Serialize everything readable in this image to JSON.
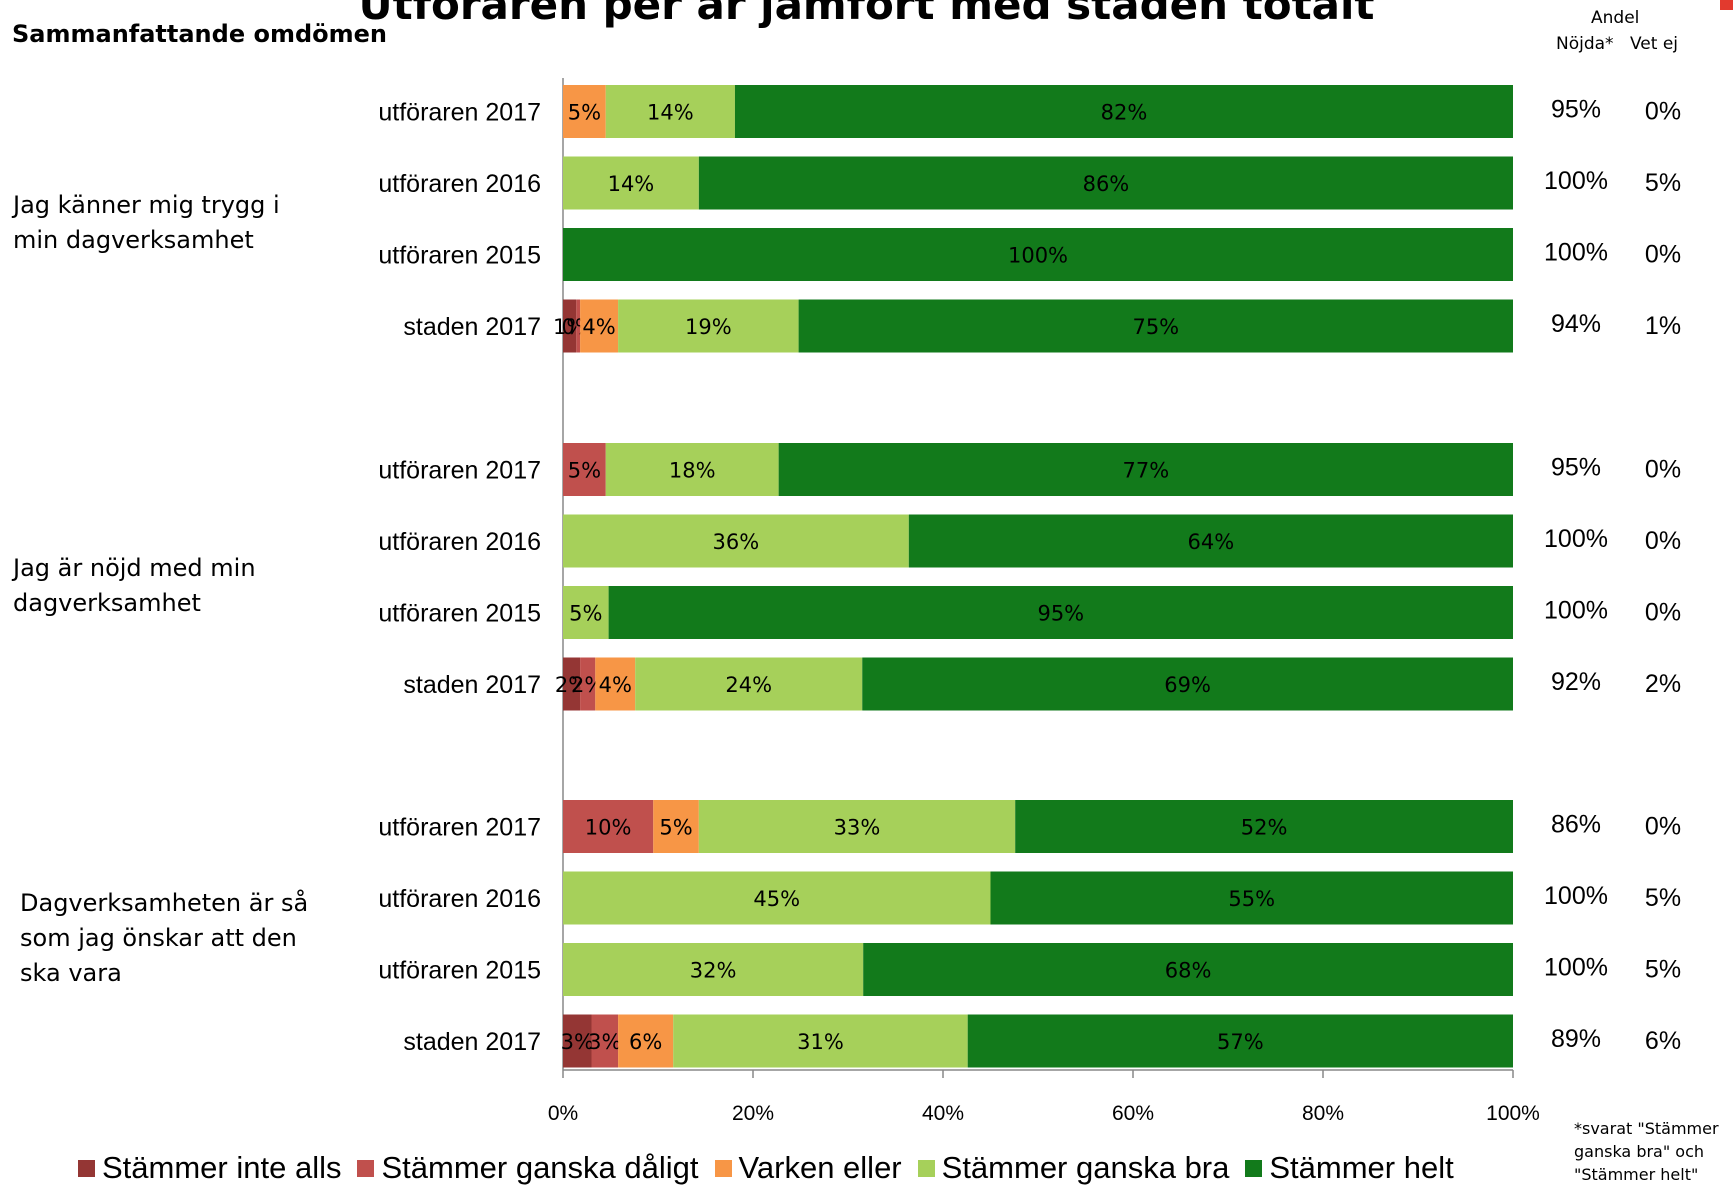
{
  "page": {
    "title": "Utföraren per år jämfört med staden totalt",
    "section_heading": "Sammanfattande omdömen",
    "header_andel": "Andel",
    "header_nojda": "Nöjda*",
    "header_vet_ej": "Vet ej",
    "footnote": "*svarat \"Stämmer ganska bra\" och \"Stämmer helt\""
  },
  "colors": {
    "Stämmer inte alls": "#943634",
    "Stämmer ganska dåligt": "#c0504d",
    "Varken eller": "#f79646",
    "Stämmer ganska bra": "#a6d05a",
    "Stämmer helt": "#127a1b"
  },
  "chart_data": {
    "type": "bar",
    "orientation": "horizontal",
    "stacked": true,
    "percent_stacked": true,
    "xlim": [
      0,
      100
    ],
    "x_ticks": [
      "0%",
      "20%",
      "40%",
      "60%",
      "80%",
      "100%"
    ],
    "legend_position": "bottom",
    "series_names": [
      "Stämmer inte alls",
      "Stämmer ganska dåligt",
      "Varken eller",
      "Stämmer ganska bra",
      "Stämmer helt"
    ],
    "groups": [
      {
        "label": "Jag känner mig trygg i min dagverksamhet",
        "bars": [
          {
            "category": "utföraren 2017",
            "values": [
              0,
              0,
              4.5,
              13.6,
              81.9
            ],
            "labels": [
              "",
              "",
              "5%",
              "14%",
              "82%"
            ],
            "nojda": "95%",
            "vet_ej": "0%"
          },
          {
            "category": "utföraren 2016",
            "values": [
              0,
              0,
              0,
              14.3,
              85.7
            ],
            "labels": [
              "",
              "",
              "",
              "14%",
              "86%"
            ],
            "nojda": "100%",
            "vet_ej": "5%"
          },
          {
            "category": "utföraren 2015",
            "values": [
              0,
              0,
              0,
              0,
              100
            ],
            "labels": [
              "",
              "",
              "",
              "",
              "100%"
            ],
            "nojda": "100%",
            "vet_ej": "0%"
          },
          {
            "category": "staden 2017",
            "values": [
              1.4,
              0.4,
              4,
              19,
              75.2
            ],
            "labels": [
              "1%",
              "0%",
              "4%",
              "19%",
              "75%"
            ],
            "nojda": "94%",
            "vet_ej": "1%"
          }
        ]
      },
      {
        "label": "Jag är nöjd med min dagverksamhet",
        "bars": [
          {
            "category": "utföraren 2017",
            "values": [
              0,
              4.5,
              0,
              18.2,
              77.3
            ],
            "labels": [
              "",
              "5%",
              "",
              "18%",
              "77%"
            ],
            "nojda": "95%",
            "vet_ej": "0%"
          },
          {
            "category": "utföraren 2016",
            "values": [
              0,
              0,
              0,
              36.4,
              63.6
            ],
            "labels": [
              "",
              "",
              "",
              "36%",
              "64%"
            ],
            "nojda": "100%",
            "vet_ej": "0%"
          },
          {
            "category": "utföraren 2015",
            "values": [
              0,
              0,
              0,
              4.8,
              95.2
            ],
            "labels": [
              "",
              "",
              "",
              "5%",
              "95%"
            ],
            "nojda": "100%",
            "vet_ej": "0%"
          },
          {
            "category": "staden 2017",
            "values": [
              1.8,
              1.6,
              4.2,
              23.9,
              68.5
            ],
            "labels": [
              "2%",
              "2%",
              "4%",
              "24%",
              "69%"
            ],
            "nojda": "92%",
            "vet_ej": "2%"
          }
        ]
      },
      {
        "label": "Dagverksamheten är så som jag önskar att den ska vara",
        "bars": [
          {
            "category": "utföraren 2017",
            "values": [
              0,
              9.5,
              4.8,
              33.3,
              52.4
            ],
            "labels": [
              "",
              "10%",
              "5%",
              "33%",
              "52%"
            ],
            "nojda": "86%",
            "vet_ej": "0%"
          },
          {
            "category": "utföraren 2016",
            "values": [
              0,
              0,
              0,
              45,
              55
            ],
            "labels": [
              "",
              "",
              "",
              "45%",
              "55%"
            ],
            "nojda": "100%",
            "vet_ej": "5%"
          },
          {
            "category": "utföraren 2015",
            "values": [
              0,
              0,
              0,
              31.6,
              68.4
            ],
            "labels": [
              "",
              "",
              "",
              "32%",
              "68%"
            ],
            "nojda": "100%",
            "vet_ej": "5%"
          },
          {
            "category": "staden 2017",
            "values": [
              3,
              2.8,
              5.8,
              31,
              57.4
            ],
            "labels": [
              "3%",
              "3%",
              "6%",
              "31%",
              "57%"
            ],
            "nojda": "89%",
            "vet_ej": "6%"
          }
        ]
      }
    ]
  }
}
